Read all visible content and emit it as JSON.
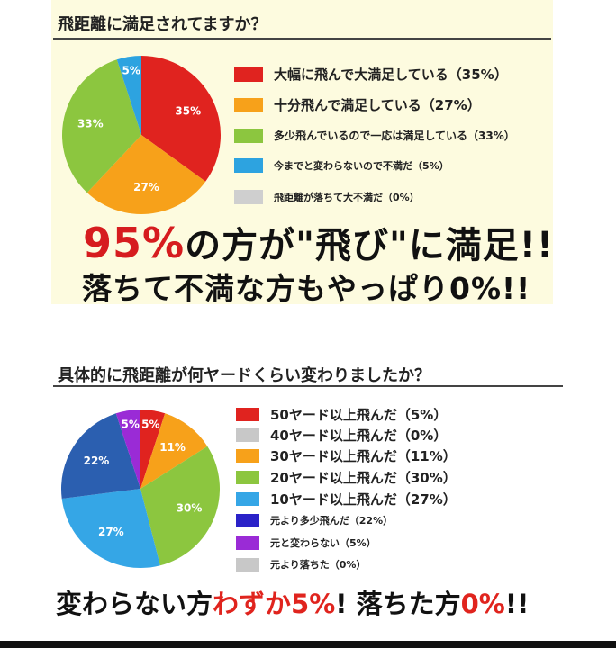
{
  "colors": {
    "red": "#e0231f",
    "orange": "#f7a11a",
    "green": "#8cc63f",
    "light_blue": "#2da3e0",
    "gray": "#cfcfcf",
    "dark_gray": "#c8c8c8",
    "royal_blue": "#2b5fb0",
    "sky_blue": "#35a6e6",
    "indigo": "#2a22c8",
    "purple": "#9a2bd6"
  },
  "section1": {
    "title": "飛距離に満足されてますか？",
    "headline_big": "95%",
    "headline_rest": "の方が\"飛び\"に満足!!",
    "headline2": "落ちて不満な方もやっぱり0%!!"
  },
  "section2": {
    "title": "具体的に飛距離が何ヤードくらい変わりましたか？",
    "footer_a": "変わらない方",
    "footer_b": "わずか5%",
    "footer_c": "! 落ちた方",
    "footer_d": "0%",
    "footer_e": "!!"
  },
  "chart_data": [
    {
      "type": "pie",
      "title": "飛距離に満足されてますか？",
      "slices": [
        {
          "label": "大幅に飛んで大満足している（35%）",
          "value": 35,
          "slice_label": "35%",
          "color": "#e0231f"
        },
        {
          "label": "十分飛んで満足している（27%）",
          "value": 27,
          "slice_label": "27%",
          "color": "#f7a11a"
        },
        {
          "label": "多少飛んでいるので一応は満足している（33%）",
          "value": 33,
          "slice_label": "33%",
          "color": "#8cc63f"
        },
        {
          "label": "今までと変わらないので不満だ（5%）",
          "value": 5,
          "slice_label": "5%",
          "color": "#2da3e0"
        },
        {
          "label": "飛距離が落ちて大不満だ（0%）",
          "value": 0,
          "slice_label": "",
          "color": "#cfcfcf"
        }
      ]
    },
    {
      "type": "pie",
      "title": "具体的に飛距離が何ヤードくらい変わりましたか？",
      "slices": [
        {
          "label": "50ヤード以上飛んだ（5%）",
          "value": 5,
          "slice_label": "5%",
          "color": "#e0231f"
        },
        {
          "label": "40ヤード以上飛んだ（0%）",
          "value": 0,
          "slice_label": "",
          "color": "#c8c8c8"
        },
        {
          "label": "30ヤード以上飛んだ（11%）",
          "value": 11,
          "slice_label": "11%",
          "color": "#f7a11a"
        },
        {
          "label": "20ヤード以上飛んだ（30%）",
          "value": 30,
          "slice_label": "30%",
          "color": "#8cc63f"
        },
        {
          "label": "10ヤード以上飛んだ（27%）",
          "value": 27,
          "slice_label": "27%",
          "color": "#35a6e6"
        },
        {
          "label": "元より多少飛んだ（22%）",
          "value": 22,
          "slice_label": "22%",
          "color": "#2b5fb0"
        },
        {
          "label": "元と変わらない（5%）",
          "value": 5,
          "slice_label": "5%",
          "color": "#9a2bd6"
        },
        {
          "label": "元より落ちた（0%）",
          "value": 0,
          "slice_label": "",
          "color": "#c8c8c8"
        }
      ],
      "legend_colors": [
        "#e0231f",
        "#c8c8c8",
        "#f7a11a",
        "#8cc63f",
        "#35a6e6",
        "#2a22c8",
        "#9a2bd6",
        "#c8c8c8"
      ]
    }
  ]
}
